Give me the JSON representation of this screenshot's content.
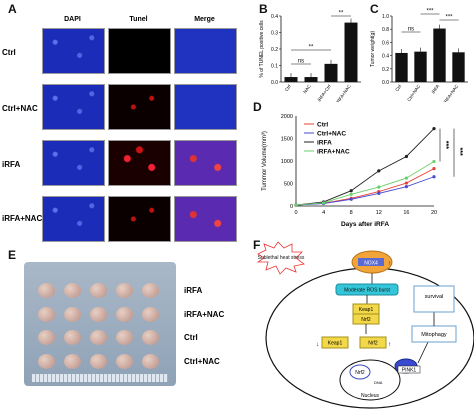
{
  "panels": {
    "A": "A",
    "B": "B",
    "C": "C",
    "D": "D",
    "E": "E",
    "F": "F"
  },
  "panelA": {
    "columns": [
      "DAPI",
      "Tunel",
      "Merge"
    ],
    "rows": [
      "Ctrl",
      "Ctrl+NAC",
      "iRFA",
      "iRFA+NAC"
    ]
  },
  "chart_data": [
    {
      "panel": "B",
      "type": "bar",
      "categories": [
        "Ctrl",
        "NAC",
        "iRFA+Ctrl",
        "iRFA+NAC"
      ],
      "values": [
        0.03,
        0.03,
        0.11,
        0.36
      ],
      "ylabel": "% of TUNEL positive cells",
      "ylim": [
        0,
        0.4
      ],
      "yticks": [
        "0.0",
        "0.1",
        "0.2",
        "0.3",
        "0.4"
      ],
      "significance": [
        "ns",
        "**",
        "**"
      ]
    },
    {
      "panel": "C",
      "type": "bar",
      "categories": [
        "Ctrl",
        "Ctrl+NAC",
        "iRFA",
        "iRFA+NAC"
      ],
      "values": [
        0.44,
        0.46,
        0.81,
        0.45
      ],
      "ylabel": "Tumor weight(g)",
      "ylim": [
        0,
        1.0
      ],
      "yticks": [
        "0.0",
        "0.2",
        "0.4",
        "0.6",
        "0.8",
        "1.0"
      ],
      "significance": [
        "ns",
        "***",
        "***"
      ]
    },
    {
      "panel": "D",
      "type": "line",
      "x": [
        0,
        4,
        8,
        12,
        16,
        20
      ],
      "xlabel": "Days after iRFA",
      "ylabel": "Tummor Volume(mm³)",
      "ylim": [
        0,
        2000
      ],
      "yticks": [
        "0",
        "500",
        "1000",
        "1500",
        "2000"
      ],
      "series": [
        {
          "name": "Ctrl",
          "color": "#e8413a",
          "values": [
            20,
            60,
            170,
            320,
            510,
            830
          ]
        },
        {
          "name": "Ctrl+NAC",
          "color": "#4a4ad0",
          "values": [
            20,
            55,
            150,
            280,
            430,
            650
          ]
        },
        {
          "name": "iRFA",
          "color": "#222222",
          "values": [
            20,
            90,
            340,
            780,
            1100,
            1720
          ]
        },
        {
          "name": "iRFA+NAC",
          "color": "#6ad06a",
          "values": [
            20,
            70,
            260,
            420,
            620,
            990
          ]
        }
      ],
      "significance": [
        "***",
        "***"
      ]
    }
  ],
  "panelE": {
    "rows": [
      "iRFA",
      "iRFA+NAC",
      "Ctrl",
      "Ctrl+NAC"
    ]
  },
  "panelF": {
    "stress": "Sublethal heat stress",
    "nox4": "NOX4",
    "ros": "Moderate ROS burst",
    "keap1": "Keap1",
    "nrf2": "Nrf2",
    "survival": "survival",
    "mitophagy": "Mitophagy",
    "pink1": "PINK1",
    "dna": "DNA",
    "nucleus": "Nucleus"
  }
}
